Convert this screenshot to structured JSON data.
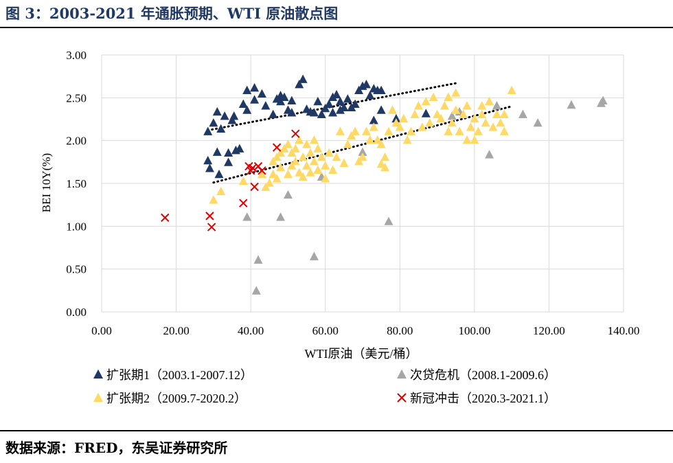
{
  "figure_title": "图 3：2003-2021 年通胀预期、WTI 原油散点图",
  "source": "数据来源：FRED，东吴证券研究所",
  "colors": {
    "expansion1": "#203864",
    "crisis": "#a6a6a6",
    "expansion2": "#ffd966",
    "covid": "#e00000",
    "trend": "#000000",
    "grid": "#d9d9d9"
  },
  "chart_data": {
    "type": "scatter",
    "xlabel": "WTI原油（美元/桶）",
    "ylabel": "BEI 10Y(%)",
    "xlim": [
      0,
      140
    ],
    "ylim": [
      0,
      3
    ],
    "xticks": [
      "0.00",
      "20.00",
      "40.00",
      "60.00",
      "80.00",
      "100.00",
      "120.00",
      "140.00"
    ],
    "yticks": [
      "0.00",
      "0.50",
      "1.00",
      "1.50",
      "2.00",
      "2.50",
      "3.00"
    ],
    "grid": true,
    "legend_position": "bottom",
    "series": [
      {
        "name": "扩张期1（2003.1-2007.12）",
        "marker": "triangle",
        "points": [
          [
            28.5,
            2.1
          ],
          [
            28.5,
            1.76
          ],
          [
            29,
            1.67
          ],
          [
            30,
            2.2
          ],
          [
            31,
            1.86
          ],
          [
            31,
            2.33
          ],
          [
            31.5,
            1.6
          ],
          [
            32,
            2.13
          ],
          [
            33,
            2.28
          ],
          [
            34,
            1.74
          ],
          [
            34,
            1.85
          ],
          [
            35,
            2.23
          ],
          [
            35.5,
            2.28
          ],
          [
            36,
            1.88
          ],
          [
            37,
            1.9
          ],
          [
            38,
            2.42
          ],
          [
            39,
            2.58
          ],
          [
            39,
            2.35
          ],
          [
            41,
            2.61
          ],
          [
            41,
            2.47
          ],
          [
            43,
            2.54
          ],
          [
            44,
            2.4
          ],
          [
            46,
            2.3
          ],
          [
            47,
            2.48
          ],
          [
            48,
            2.52
          ],
          [
            48,
            2.45
          ],
          [
            49,
            2.5
          ],
          [
            50,
            2.35
          ],
          [
            51,
            2.46
          ],
          [
            51,
            2.32
          ],
          [
            53,
            2.65
          ],
          [
            54,
            2.71
          ],
          [
            55,
            2.36
          ],
          [
            56,
            2.33
          ],
          [
            57,
            2.32
          ],
          [
            58,
            2.45
          ],
          [
            59,
            2.3
          ],
          [
            60,
            2.37
          ],
          [
            61,
            2.42
          ],
          [
            62,
            2.5
          ],
          [
            62,
            2.32
          ],
          [
            63,
            2.53
          ],
          [
            64,
            2.35
          ],
          [
            64,
            2.45
          ],
          [
            65,
            2.38
          ],
          [
            66,
            2.48
          ],
          [
            67,
            2.38
          ],
          [
            68,
            2.42
          ],
          [
            69,
            2.58
          ],
          [
            70,
            2.63
          ],
          [
            71,
            2.65
          ],
          [
            72,
            2.52
          ],
          [
            73,
            2.6
          ],
          [
            74,
            2.58
          ],
          [
            75,
            2.58
          ],
          [
            75,
            2.35
          ],
          [
            73,
            2.23
          ],
          [
            79,
            2.25
          ],
          [
            87,
            2.31
          ]
        ]
      },
      {
        "name": "次贷危机（2008.1-2009.6）",
        "marker": "triangle",
        "points": [
          [
            39,
            1.1
          ],
          [
            42,
            0.6
          ],
          [
            41.5,
            0.24
          ],
          [
            48,
            1.1
          ],
          [
            50,
            1.36
          ],
          [
            57,
            0.64
          ],
          [
            59,
            1.57
          ],
          [
            70,
            1.86
          ],
          [
            77,
            1.05
          ],
          [
            94,
            2.28
          ],
          [
            96,
            2.33
          ],
          [
            104,
            1.83
          ],
          [
            106,
            2.4
          ],
          [
            113,
            2.3
          ],
          [
            117,
            2.2
          ],
          [
            126,
            2.41
          ],
          [
            134,
            2.43
          ],
          [
            134.5,
            2.46
          ]
        ]
      },
      {
        "name": "扩张期2（2009.7-2020.2）",
        "marker": "triangle",
        "points": [
          [
            30,
            1.3
          ],
          [
            32,
            1.4
          ],
          [
            38,
            1.52
          ],
          [
            43,
            1.6
          ],
          [
            44,
            1.45
          ],
          [
            45,
            1.5
          ],
          [
            46,
            1.6
          ],
          [
            46,
            1.75
          ],
          [
            47,
            1.8
          ],
          [
            47,
            1.55
          ],
          [
            48,
            1.68
          ],
          [
            48,
            1.85
          ],
          [
            49,
            1.9
          ],
          [
            50,
            1.6
          ],
          [
            50,
            1.95
          ],
          [
            51,
            1.7
          ],
          [
            51,
            1.85
          ],
          [
            52,
            1.75
          ],
          [
            52,
            1.9
          ],
          [
            53,
            1.62
          ],
          [
            53,
            2.0
          ],
          [
            54,
            1.8
          ],
          [
            54,
            1.57
          ],
          [
            55,
            1.7
          ],
          [
            55,
            1.95
          ],
          [
            56,
            1.85
          ],
          [
            56,
            1.62
          ],
          [
            57,
            1.75
          ],
          [
            57,
            2.0
          ],
          [
            58,
            1.65
          ],
          [
            58,
            1.9
          ],
          [
            59,
            1.8
          ],
          [
            60,
            1.7
          ],
          [
            60,
            1.55
          ],
          [
            61,
            1.85
          ],
          [
            62,
            1.65
          ],
          [
            63,
            1.8
          ],
          [
            64,
            2.1
          ],
          [
            65,
            1.73
          ],
          [
            66,
            1.95
          ],
          [
            67,
            2.05
          ],
          [
            68,
            2.1
          ],
          [
            69,
            1.75
          ],
          [
            70,
            1.8
          ],
          [
            71,
            2.1
          ],
          [
            72,
            2.0
          ],
          [
            73,
            2.15
          ],
          [
            74,
            2.0
          ],
          [
            75,
            1.95
          ],
          [
            75,
            1.72
          ],
          [
            76,
            1.8
          ],
          [
            76,
            1.68
          ],
          [
            77,
            2.1
          ],
          [
            78,
            2.35
          ],
          [
            79,
            2.2
          ],
          [
            80,
            2.15
          ],
          [
            81,
            2.25
          ],
          [
            82,
            2.0
          ],
          [
            83,
            2.1
          ],
          [
            84,
            2.3
          ],
          [
            85,
            2.4
          ],
          [
            86,
            2.15
          ],
          [
            87,
            2.45
          ],
          [
            88,
            2.2
          ],
          [
            89,
            2.5
          ],
          [
            90,
            2.3
          ],
          [
            91,
            2.25
          ],
          [
            92,
            2.4
          ],
          [
            93,
            2.1
          ],
          [
            93,
            2.5
          ],
          [
            94,
            2.2
          ],
          [
            95,
            2.35
          ],
          [
            95,
            2.55
          ],
          [
            96,
            2.1
          ],
          [
            97,
            2.3
          ],
          [
            98,
            2.0
          ],
          [
            98,
            2.4
          ],
          [
            99,
            2.15
          ],
          [
            100,
            2.0
          ],
          [
            100,
            2.25
          ],
          [
            101,
            2.1
          ],
          [
            102,
            2.3
          ],
          [
            102,
            2.4
          ],
          [
            103,
            2.2
          ],
          [
            104,
            2.45
          ],
          [
            105,
            2.15
          ],
          [
            106,
            2.3
          ],
          [
            107,
            2.2
          ],
          [
            108,
            2.1
          ],
          [
            108,
            2.3
          ],
          [
            110,
            2.58
          ]
        ]
      },
      {
        "name": "新冠冲击（2020.3-2021.1）",
        "marker": "x",
        "points": [
          [
            17,
            1.1
          ],
          [
            29,
            1.12
          ],
          [
            29.5,
            0.99
          ],
          [
            38,
            1.27
          ],
          [
            39.5,
            1.7
          ],
          [
            40,
            1.65
          ],
          [
            40.5,
            1.68
          ],
          [
            41,
            1.46
          ],
          [
            42,
            1.7
          ],
          [
            43,
            1.65
          ],
          [
            47,
            1.92
          ],
          [
            52,
            2.08
          ]
        ]
      }
    ],
    "trendlines": [
      {
        "x": [
          28.5,
          95
        ],
        "y": [
          2.12,
          2.67
        ]
      },
      {
        "x": [
          30,
          110
        ],
        "y": [
          1.51,
          2.4
        ]
      }
    ]
  }
}
